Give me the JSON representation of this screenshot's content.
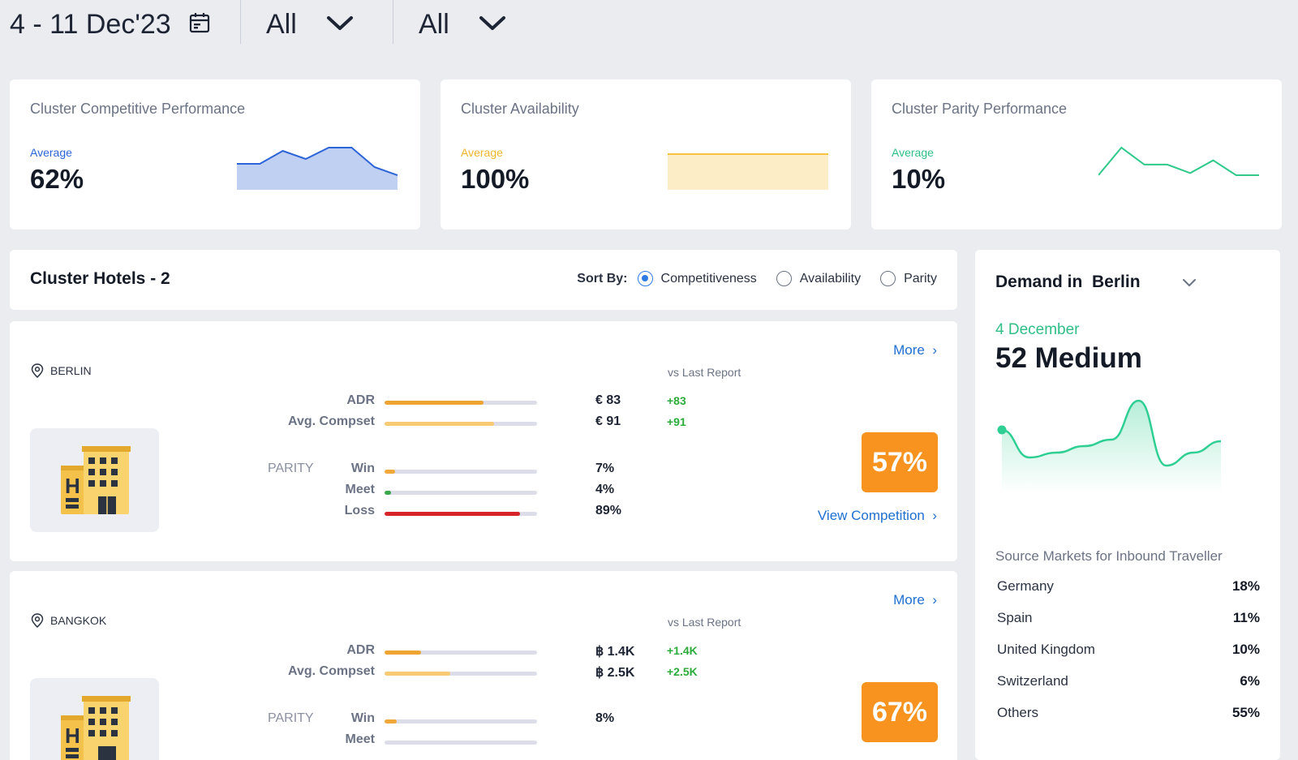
{
  "filters": {
    "date_range": "4 - 11 Dec'23",
    "filter_2_value": "All",
    "filter_3_value": "All"
  },
  "kpis": [
    {
      "title": "Cluster Competitive Performance",
      "avg_label": "Average",
      "value": "62%",
      "color": "#2d64d8",
      "trend": [
        62,
        62,
        70,
        65,
        72,
        72,
        60,
        55
      ]
    },
    {
      "title": "Cluster Availability",
      "avg_label": "Average",
      "value": "100%",
      "color": "#f5c242",
      "trend": [
        100,
        100,
        100,
        100,
        100,
        100,
        100,
        100
      ]
    },
    {
      "title": "Cluster Parity Performance",
      "avg_label": "Average",
      "value": "10%",
      "color": "#2fc98a",
      "trend": [
        5,
        18,
        10,
        10,
        6,
        12,
        5,
        5
      ]
    }
  ],
  "cluster": {
    "title": "Cluster Hotels - 2",
    "sort_label": "Sort By:",
    "sort_options": [
      "Competitiveness",
      "Availability",
      "Parity"
    ],
    "selected_sort": "Competitiveness"
  },
  "hotels": [
    {
      "location": "BERLIN",
      "more": "More",
      "vs_last": "vs Last Report",
      "adr_label": "ADR",
      "adr_value": "€ 83",
      "adr_delta": "+83",
      "adr_fill": 0.65,
      "compset_label": "Avg. Compset",
      "compset_value": "€ 91",
      "compset_delta": "+91",
      "compset_fill": 0.72,
      "parity_label": "PARITY",
      "win_label": "Win",
      "win_value": "7%",
      "win_fill": 0.07,
      "meet_label": "Meet",
      "meet_value": "4%",
      "meet_fill": 0.04,
      "loss_label": "Loss",
      "loss_value": "89%",
      "loss_fill": 0.89,
      "score": "57%",
      "view_competition": "View Competition"
    },
    {
      "location": "BANGKOK",
      "more": "More",
      "vs_last": "vs Last Report",
      "adr_label": "ADR",
      "adr_value": "฿ 1.4K",
      "adr_delta": "+1.4K",
      "adr_fill": 0.24,
      "compset_label": "Avg. Compset",
      "compset_value": "฿ 2.5K",
      "compset_delta": "+2.5K",
      "compset_fill": 0.43,
      "parity_label": "PARITY",
      "win_label": "Win",
      "win_value": "8%",
      "win_fill": 0.08,
      "meet_label": "Meet",
      "meet_fill": 0,
      "score": "67%"
    }
  ],
  "demand": {
    "title": "Demand in  Berlin",
    "date": "4 December",
    "level": "52 Medium",
    "trend": [
      52,
      35,
      38,
      42,
      46,
      70,
      30,
      38,
      45
    ],
    "source_title": "Source Markets for Inbound Traveller",
    "markets": [
      {
        "name": "Germany",
        "pct": "18%"
      },
      {
        "name": "Spain",
        "pct": "11%"
      },
      {
        "name": "United Kingdom",
        "pct": "10%"
      },
      {
        "name": "Switzerland",
        "pct": "6%"
      },
      {
        "name": "Others",
        "pct": "55%"
      }
    ]
  },
  "colors": {
    "adr": "#eea431",
    "compset": "#f7ca73",
    "win": "#f0a83a",
    "meet": "#3aa84a",
    "loss": "#d6242a",
    "score": "#f7931e",
    "link": "#1f6fd1",
    "demand_line": "#2fcf93"
  }
}
